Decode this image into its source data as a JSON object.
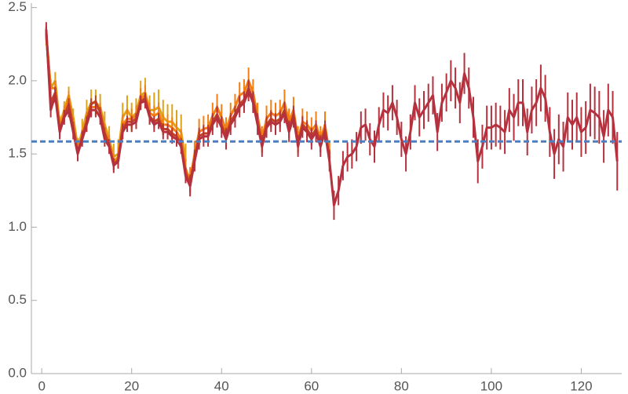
{
  "chart_data": {
    "type": "line",
    "x": [
      1,
      2,
      3,
      4,
      5,
      6,
      7,
      8,
      9,
      10,
      11,
      12,
      13,
      14,
      15,
      16,
      17,
      18,
      19,
      20,
      21,
      22,
      23,
      24,
      25,
      26,
      27,
      28,
      29,
      30,
      31,
      32,
      33,
      34,
      35,
      36,
      37,
      38,
      39,
      40,
      41,
      42,
      43,
      44,
      45,
      46,
      47,
      48,
      49,
      50,
      51,
      52,
      53,
      54,
      55,
      56,
      57,
      58,
      59,
      60,
      61,
      62,
      63,
      64,
      65,
      66,
      67,
      68,
      69,
      70,
      71,
      72,
      73,
      74,
      75,
      76,
      77,
      78,
      79,
      80,
      81,
      82,
      83,
      84,
      85,
      86,
      87,
      88,
      89,
      90,
      91,
      92,
      93,
      94,
      95,
      96,
      97,
      98,
      99,
      100,
      101,
      102,
      103,
      104,
      105,
      106,
      107,
      108,
      109,
      110,
      111,
      112,
      113,
      114,
      115,
      116,
      117,
      118,
      119,
      120,
      121,
      122,
      123,
      124,
      125,
      126,
      127,
      128
    ],
    "series": [
      {
        "color": "#dfa21b",
        "values": [
          2.3,
          1.95,
          2.0,
          1.7,
          1.8,
          1.9,
          1.75,
          1.55,
          1.65,
          1.78,
          1.85,
          1.85,
          1.82,
          1.7,
          1.6,
          1.48,
          1.5,
          1.75,
          1.8,
          1.75,
          1.78,
          1.9,
          1.92,
          1.8,
          1.8,
          1.82,
          1.75,
          1.72,
          1.72,
          1.68,
          1.65,
          1.45,
          null,
          null,
          null,
          null,
          null,
          null,
          null,
          null,
          null,
          null,
          null,
          null,
          null,
          null,
          null,
          null,
          null,
          null,
          null,
          null,
          null,
          null,
          null,
          null,
          null,
          null,
          null,
          null,
          null,
          null,
          null,
          null,
          null,
          null,
          null,
          null,
          null,
          null,
          null,
          null,
          null,
          null,
          null,
          null,
          null,
          null,
          null,
          null,
          null,
          null,
          null,
          null,
          null,
          null,
          null,
          null,
          null,
          null,
          null,
          null,
          null,
          null,
          null,
          null,
          null,
          null,
          null,
          null,
          null,
          null,
          null,
          null,
          null,
          null,
          null,
          null,
          null,
          null,
          null,
          null,
          null,
          null,
          null,
          null,
          null,
          null,
          null,
          null,
          null,
          null,
          null,
          null,
          null,
          null,
          null,
          null
        ],
        "errors": [
          0.06,
          0.06,
          0.06,
          0.06,
          0.06,
          0.06,
          0.06,
          0.06,
          0.09,
          0.09,
          0.09,
          0.09,
          0.09,
          0.09,
          0.09,
          0.09,
          0.1,
          0.1,
          0.1,
          0.1,
          0.1,
          0.1,
          0.1,
          0.1,
          0.12,
          0.12,
          0.12,
          0.12,
          0.12,
          0.12,
          0.12,
          0.12,
          null,
          null,
          null,
          null,
          null,
          null,
          null,
          null,
          null,
          null,
          null,
          null,
          null,
          null,
          null,
          null,
          null,
          null,
          null,
          null,
          null,
          null,
          null,
          null,
          null,
          null,
          null,
          null,
          null,
          null,
          null,
          null,
          null,
          null,
          null,
          null,
          null,
          null,
          null,
          null,
          null,
          null,
          null,
          null,
          null,
          null,
          null,
          null,
          null,
          null,
          null,
          null,
          null,
          null,
          null,
          null,
          null,
          null,
          null,
          null,
          null,
          null,
          null,
          null,
          null,
          null,
          null,
          null,
          null,
          null,
          null,
          null,
          null,
          null,
          null,
          null,
          null,
          null,
          null,
          null,
          null,
          null,
          null,
          null,
          null,
          null,
          null,
          null,
          null,
          null,
          null,
          null,
          null,
          null,
          null,
          null
        ]
      },
      {
        "color": "#f37f14",
        "values": [
          2.32,
          1.95,
          1.95,
          1.68,
          1.78,
          1.88,
          1.7,
          1.52,
          1.62,
          1.74,
          1.82,
          1.82,
          1.8,
          1.66,
          1.58,
          1.45,
          1.48,
          1.7,
          1.74,
          1.74,
          1.76,
          1.88,
          1.9,
          1.78,
          1.76,
          1.78,
          1.7,
          1.7,
          1.68,
          1.65,
          1.6,
          1.4,
          1.32,
          1.5,
          1.65,
          1.67,
          1.68,
          1.76,
          1.82,
          1.75,
          1.66,
          1.76,
          1.82,
          1.9,
          1.92,
          2.0,
          1.92,
          1.76,
          1.6,
          1.74,
          1.78,
          1.76,
          1.78,
          1.85,
          1.72,
          1.8,
          1.6,
          1.72,
          1.7,
          1.66,
          1.7,
          1.6,
          1.7,
          1.5,
          null,
          null,
          null,
          null,
          null,
          null,
          null,
          null,
          null,
          null,
          null,
          null,
          null,
          null,
          null,
          null,
          null,
          null,
          null,
          null,
          null,
          null,
          null,
          null,
          null,
          null,
          null,
          null,
          null,
          null,
          null,
          null,
          null,
          null,
          null,
          null,
          null,
          null,
          null,
          null,
          null,
          null,
          null,
          null,
          null,
          null,
          null,
          null,
          null,
          null,
          null,
          null,
          null,
          null,
          null,
          null,
          null,
          null,
          null,
          null,
          null,
          null,
          null,
          null
        ],
        "errors": [
          0.05,
          0.05,
          0.05,
          0.05,
          0.05,
          0.05,
          0.05,
          0.05,
          0.05,
          0.05,
          0.05,
          0.05,
          0.05,
          0.05,
          0.05,
          0.05,
          0.07,
          0.07,
          0.07,
          0.07,
          0.07,
          0.07,
          0.07,
          0.07,
          0.07,
          0.07,
          0.07,
          0.07,
          0.07,
          0.07,
          0.07,
          0.07,
          0.09,
          0.09,
          0.09,
          0.09,
          0.09,
          0.09,
          0.09,
          0.09,
          0.09,
          0.09,
          0.09,
          0.09,
          0.09,
          0.09,
          0.09,
          0.09,
          0.09,
          0.09,
          0.09,
          0.09,
          0.09,
          0.09,
          0.09,
          0.09,
          0.09,
          0.09,
          0.09,
          0.09,
          0.09,
          0.09,
          0.09,
          0.09,
          null,
          null,
          null,
          null,
          null,
          null,
          null,
          null,
          null,
          null,
          null,
          null,
          null,
          null,
          null,
          null,
          null,
          null,
          null,
          null,
          null,
          null,
          null,
          null,
          null,
          null,
          null,
          null,
          null,
          null,
          null,
          null,
          null,
          null,
          null,
          null,
          null,
          null,
          null,
          null,
          null,
          null,
          null,
          null,
          null,
          null,
          null,
          null,
          null,
          null,
          null,
          null,
          null,
          null,
          null,
          null,
          null,
          null,
          null,
          null,
          null,
          null,
          null,
          null
        ]
      },
      {
        "color": "#c0441d",
        "values": [
          2.33,
          1.85,
          1.92,
          1.66,
          1.76,
          1.84,
          1.68,
          1.51,
          1.62,
          1.72,
          1.84,
          1.86,
          1.78,
          1.64,
          1.56,
          1.43,
          1.46,
          1.67,
          1.72,
          1.72,
          1.74,
          1.86,
          1.88,
          1.76,
          1.72,
          1.74,
          1.67,
          1.67,
          1.64,
          1.62,
          1.57,
          1.37,
          1.3,
          1.47,
          1.62,
          1.64,
          1.64,
          1.72,
          1.77,
          1.7,
          1.62,
          1.72,
          1.77,
          1.84,
          1.87,
          1.95,
          1.87,
          1.72,
          1.57,
          1.7,
          1.74,
          1.72,
          1.74,
          1.8,
          1.67,
          1.77,
          1.57,
          1.7,
          1.67,
          1.62,
          1.67,
          1.57,
          1.67,
          1.47,
          null,
          null,
          null,
          null,
          null,
          null,
          null,
          null,
          null,
          null,
          null,
          null,
          null,
          null,
          null,
          null,
          null,
          null,
          null,
          null,
          null,
          null,
          null,
          null,
          null,
          null,
          null,
          null,
          null,
          null,
          null,
          null,
          null,
          null,
          null,
          null,
          null,
          null,
          null,
          null,
          null,
          null,
          null,
          null,
          null,
          null,
          null,
          null,
          null,
          null,
          null,
          null,
          null,
          null,
          null,
          null,
          null,
          null,
          null,
          null,
          null,
          null,
          null,
          null
        ],
        "errors": [
          0.04,
          0.04,
          0.04,
          0.04,
          0.04,
          0.04,
          0.04,
          0.04,
          0.04,
          0.04,
          0.04,
          0.04,
          0.04,
          0.04,
          0.04,
          0.04,
          0.04,
          0.04,
          0.04,
          0.04,
          0.04,
          0.04,
          0.04,
          0.04,
          0.04,
          0.04,
          0.04,
          0.04,
          0.04,
          0.04,
          0.04,
          0.04,
          0.06,
          0.06,
          0.06,
          0.06,
          0.06,
          0.06,
          0.06,
          0.06,
          0.06,
          0.06,
          0.06,
          0.06,
          0.06,
          0.06,
          0.06,
          0.06,
          0.06,
          0.06,
          0.06,
          0.06,
          0.06,
          0.06,
          0.06,
          0.06,
          0.06,
          0.06,
          0.06,
          0.06,
          0.06,
          0.06,
          0.06,
          0.06,
          null,
          null,
          null,
          null,
          null,
          null,
          null,
          null,
          null,
          null,
          null,
          null,
          null,
          null,
          null,
          null,
          null,
          null,
          null,
          null,
          null,
          null,
          null,
          null,
          null,
          null,
          null,
          null,
          null,
          null,
          null,
          null,
          null,
          null,
          null,
          null,
          null,
          null,
          null,
          null,
          null,
          null,
          null,
          null,
          null,
          null,
          null,
          null,
          null,
          null,
          null,
          null,
          null,
          null,
          null,
          null,
          null,
          null,
          null,
          null,
          null,
          null,
          null,
          null
        ]
      },
      {
        "color": "#b5313e",
        "values": [
          2.35,
          1.8,
          1.9,
          1.65,
          1.75,
          1.8,
          1.65,
          1.5,
          1.6,
          1.7,
          1.8,
          1.8,
          1.75,
          1.6,
          1.55,
          1.42,
          1.45,
          1.65,
          1.7,
          1.7,
          1.72,
          1.85,
          1.86,
          1.75,
          1.7,
          1.72,
          1.65,
          1.65,
          1.62,
          1.6,
          1.55,
          1.35,
          1.28,
          1.45,
          1.6,
          1.62,
          1.62,
          1.7,
          1.75,
          1.68,
          1.6,
          1.7,
          1.75,
          1.82,
          1.85,
          1.93,
          1.85,
          1.7,
          1.55,
          1.68,
          1.72,
          1.7,
          1.72,
          1.78,
          1.65,
          1.75,
          1.55,
          1.68,
          1.65,
          1.6,
          1.65,
          1.55,
          1.65,
          1.45,
          1.15,
          1.25,
          1.42,
          1.48,
          1.5,
          1.55,
          1.68,
          1.7,
          1.6,
          1.55,
          1.7,
          1.8,
          1.78,
          1.85,
          1.75,
          1.6,
          1.5,
          1.65,
          1.85,
          1.75,
          1.8,
          1.85,
          1.9,
          1.65,
          1.85,
          1.92,
          2.0,
          1.95,
          1.85,
          2.05,
          1.95,
          1.75,
          1.45,
          1.55,
          1.68,
          1.68,
          1.7,
          1.68,
          1.65,
          1.8,
          1.75,
          1.85,
          1.85,
          1.65,
          1.8,
          1.85,
          1.95,
          1.88,
          1.65,
          1.5,
          1.6,
          1.55,
          1.75,
          1.7,
          1.75,
          1.65,
          1.68,
          1.8,
          1.78,
          1.75,
          1.62,
          1.8,
          1.75,
          1.45
        ],
        "errors": [
          0.05,
          0.05,
          0.05,
          0.05,
          0.05,
          0.05,
          0.05,
          0.05,
          0.05,
          0.05,
          0.05,
          0.05,
          0.05,
          0.05,
          0.05,
          0.05,
          0.05,
          0.05,
          0.05,
          0.05,
          0.05,
          0.05,
          0.05,
          0.05,
          0.05,
          0.05,
          0.05,
          0.05,
          0.05,
          0.05,
          0.05,
          0.05,
          0.07,
          0.07,
          0.07,
          0.07,
          0.07,
          0.07,
          0.07,
          0.07,
          0.07,
          0.07,
          0.07,
          0.07,
          0.07,
          0.07,
          0.07,
          0.07,
          0.07,
          0.07,
          0.07,
          0.07,
          0.07,
          0.07,
          0.07,
          0.07,
          0.07,
          0.07,
          0.07,
          0.07,
          0.07,
          0.07,
          0.07,
          0.07,
          0.1,
          0.1,
          0.1,
          0.1,
          0.1,
          0.1,
          0.11,
          0.11,
          0.11,
          0.11,
          0.12,
          0.12,
          0.12,
          0.12,
          0.12,
          0.12,
          0.12,
          0.12,
          0.12,
          0.13,
          0.13,
          0.13,
          0.13,
          0.13,
          0.13,
          0.13,
          0.14,
          0.14,
          0.14,
          0.14,
          0.14,
          0.14,
          0.15,
          0.15,
          0.15,
          0.15,
          0.15,
          0.15,
          0.15,
          0.15,
          0.16,
          0.16,
          0.16,
          0.16,
          0.16,
          0.16,
          0.16,
          0.16,
          0.17,
          0.17,
          0.17,
          0.17,
          0.17,
          0.17,
          0.17,
          0.17,
          0.18,
          0.18,
          0.18,
          0.18,
          0.18,
          0.18,
          0.18,
          0.2
        ]
      }
    ],
    "reference_line": {
      "value": 1.585,
      "color": "#4f7ec0",
      "dashed": true
    },
    "xlim": [
      -2.3,
      129
    ],
    "ylim": [
      0,
      2.53
    ],
    "xticks": [
      0,
      20,
      40,
      60,
      80,
      100,
      120
    ],
    "yticks": [
      {
        "value": 0,
        "label": "0.0"
      },
      0.5,
      {
        "value": 1,
        "label": "1.0"
      },
      1.5,
      {
        "value": 2,
        "label": "2.0"
      },
      2.5
    ]
  }
}
